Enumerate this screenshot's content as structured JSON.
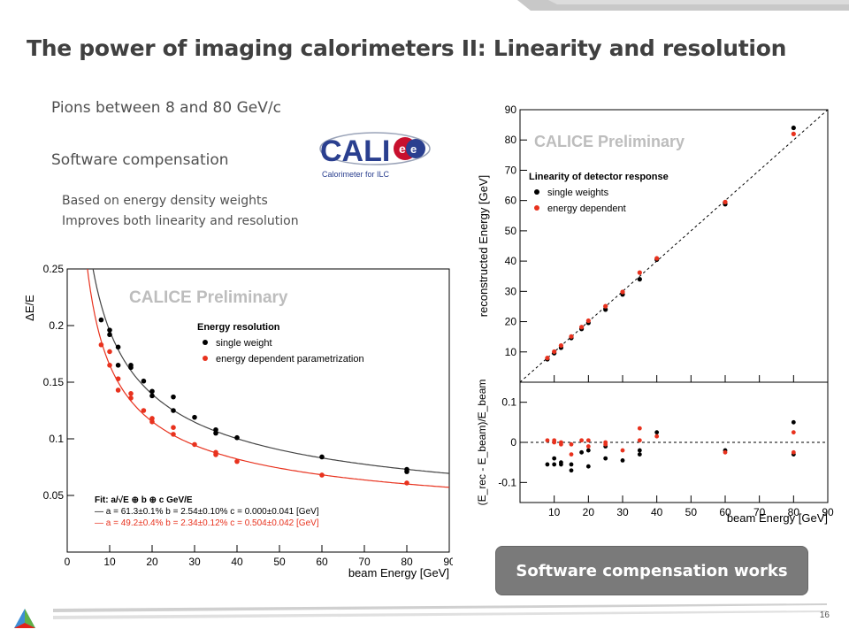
{
  "slide": {
    "title": "The power of imaging calorimeters II: Linearity and resolution",
    "bullet1": "Pions between 8 and 80 GeV/c",
    "bullet2": "Software compensation",
    "sub1": "Based on energy density weights",
    "sub2": "Improves both linearity and resolution",
    "conclusion": "Software compensation works",
    "page_number": "16",
    "logo": {
      "text": "CALI",
      "caption": "Calorimeter for ILC"
    }
  },
  "chart_data": [
    {
      "type": "scatter",
      "watermark": "CALICE Preliminary",
      "legend_title": "Energy resolution",
      "xlabel": "beam Energy [GeV]",
      "ylabel": "ΔE/E",
      "xlim": [
        0,
        90
      ],
      "ylim": [
        0.0,
        0.25
      ],
      "xticks": [
        "0",
        "10",
        "20",
        "30",
        "40",
        "50",
        "60",
        "70",
        "80",
        "90"
      ],
      "yticks": [
        "0.05",
        "0.1",
        "0.15",
        "0.2",
        "0.25"
      ],
      "fit_title": "Fit: a/√E ⊕ b ⊕ c GeV/E",
      "series": [
        {
          "name": "single weight",
          "color": "#000000",
          "fit_label": "— a = 61.3±0.1%  b = 2.54±0.10%  c = 0.000±0.041 [GeV]",
          "fit": {
            "a": 0.613,
            "b": 0.0254,
            "c": 0.0
          },
          "x": [
            8,
            10,
            10,
            12,
            12,
            15,
            15,
            18,
            20,
            20,
            25,
            25,
            30,
            35,
            35,
            40,
            60,
            80,
            80
          ],
          "y": [
            0.205,
            0.196,
            0.192,
            0.181,
            0.165,
            0.165,
            0.163,
            0.151,
            0.142,
            0.138,
            0.137,
            0.125,
            0.119,
            0.108,
            0.105,
            0.101,
            0.084,
            0.073,
            0.071
          ]
        },
        {
          "name": "energy dependent parametrization",
          "color": "#e8321e",
          "fit_label": "— a = 49.2±0.4%  b = 2.34±0.12%  c = 0.504±0.042 [GeV]",
          "fit": {
            "a": 0.492,
            "b": 0.0234,
            "c": 0.504
          },
          "x": [
            8,
            10,
            10,
            12,
            12,
            15,
            15,
            18,
            20,
            20,
            25,
            25,
            30,
            35,
            35,
            40,
            60,
            80
          ],
          "y": [
            0.183,
            0.177,
            0.165,
            0.153,
            0.143,
            0.14,
            0.136,
            0.125,
            0.118,
            0.115,
            0.104,
            0.11,
            0.095,
            0.088,
            0.086,
            0.08,
            0.068,
            0.061
          ]
        }
      ]
    },
    {
      "type": "scatter",
      "watermark": "CALICE Preliminary",
      "legend_title": "Linearity of detector response",
      "xlabel": "beam Energy [GeV]",
      "ylabel": "reconstructed Energy [GeV]",
      "xlim": [
        0,
        90
      ],
      "ylim": [
        0,
        90
      ],
      "xticks": [
        "10",
        "20",
        "30",
        "40",
        "50",
        "60",
        "70",
        "80",
        "90"
      ],
      "yticks": [
        "10",
        "20",
        "30",
        "40",
        "50",
        "60",
        "70",
        "80",
        "90"
      ],
      "series": [
        {
          "name": "single weights",
          "color": "#000000",
          "x": [
            8,
            10,
            12,
            15,
            18,
            20,
            25,
            30,
            35,
            40,
            60,
            80
          ],
          "y": [
            7.6,
            9.6,
            11.4,
            14.6,
            17.6,
            19.6,
            24.0,
            29.0,
            34.0,
            40.5,
            58.8,
            84.0
          ]
        },
        {
          "name": "energy dependent",
          "color": "#e8321e",
          "x": [
            8,
            10,
            12,
            15,
            18,
            20,
            25,
            30,
            35,
            40,
            60,
            80
          ],
          "y": [
            8.0,
            10.1,
            12.1,
            15.1,
            18.2,
            20.3,
            25.1,
            29.8,
            36.2,
            40.9,
            59.5,
            82.0
          ]
        }
      ]
    },
    {
      "type": "scatter",
      "xlabel": "beam Energy [GeV]",
      "ylabel": "(E_rec - E_beam)/E_beam",
      "xlim": [
        0,
        90
      ],
      "ylim": [
        -0.15,
        0.15
      ],
      "xticks": [
        "10",
        "20",
        "30",
        "40",
        "50",
        "60",
        "70",
        "80",
        "90"
      ],
      "yticks": [
        "-0.1",
        "0",
        "0.1"
      ],
      "series": [
        {
          "name": "single weights",
          "color": "#000000",
          "x": [
            8,
            10,
            10,
            12,
            12,
            15,
            15,
            18,
            20,
            20,
            25,
            25,
            30,
            35,
            35,
            40,
            60,
            80,
            80
          ],
          "y": [
            -0.055,
            -0.04,
            -0.055,
            -0.05,
            -0.055,
            -0.055,
            -0.07,
            -0.025,
            -0.06,
            -0.02,
            -0.04,
            -0.01,
            -0.045,
            -0.02,
            -0.03,
            0.025,
            -0.02,
            0.05,
            -0.03
          ]
        },
        {
          "name": "energy dependent",
          "color": "#e8321e",
          "x": [
            8,
            10,
            10,
            12,
            12,
            15,
            15,
            18,
            20,
            20,
            25,
            25,
            30,
            35,
            35,
            40,
            60,
            80,
            80
          ],
          "y": [
            0.005,
            0.005,
            0.0,
            -0.005,
            0.0,
            -0.005,
            -0.03,
            0.005,
            0.005,
            -0.01,
            0.0,
            -0.005,
            -0.02,
            0.035,
            0.005,
            0.015,
            -0.025,
            0.025,
            -0.025
          ]
        }
      ]
    }
  ],
  "colors": {
    "black_series": "#000000",
    "red_series": "#e8321e",
    "badge": "#7a7a7a",
    "title": "#404040"
  }
}
